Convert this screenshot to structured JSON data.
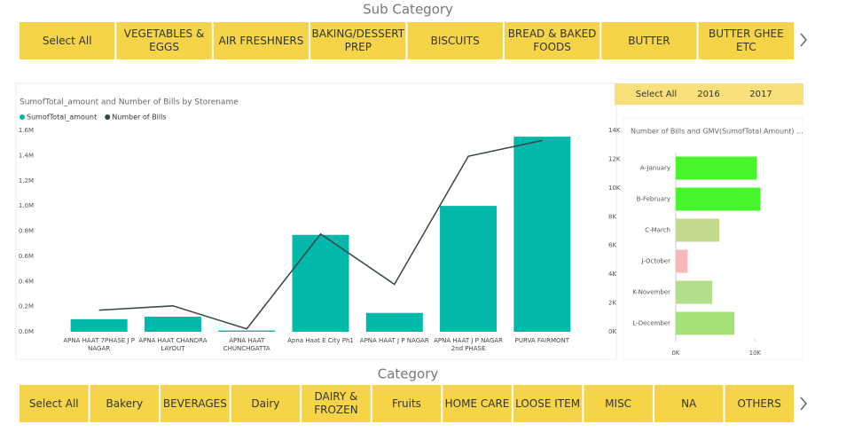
{
  "sub_category_slicer": {
    "title": "Sub Category",
    "items": [
      "Select All",
      "VEGETABLES & EGGS",
      "AIR FRESHNERS",
      "BAKING/DESSERT PREP",
      "BISCUITS",
      "BREAD & BAKED FOODS",
      "BUTTER",
      "BUTTER GHEE ETC"
    ]
  },
  "category_slicer": {
    "title": "Category",
    "items": [
      "Select All",
      "Bakery",
      "BEVERAGES",
      "Dairy",
      "DAIRY & FROZEN",
      "Fruits",
      "HOME CARE",
      "LOOSE ITEM",
      "MISC",
      "NA",
      "OTHERS"
    ]
  },
  "year_slicer": {
    "items": [
      "Select All",
      "2016",
      "2017"
    ]
  },
  "chart_data": [
    {
      "type": "combo",
      "title": "SumofTotal_amount and Number of Bills by Storename",
      "categories": [
        "APNA HAAT 7PHASE J P NAGAR",
        "APNA HAAT CHANDRA LAYOUT",
        "APNA HAAT CHUNCHGATTA",
        "Apna Haat E City Ph1",
        "APNA HAAT J P NAGAR",
        "APNA HAAT J P NAGAR 2nd PHASE",
        "PURVA FAIRMONT"
      ],
      "series": [
        {
          "name": "SumofTotal_amount",
          "color": "#01b8aa",
          "kind": "bar",
          "values": [
            100000,
            120000,
            10000,
            770000,
            150000,
            1000000,
            1550000
          ]
        },
        {
          "name": "Number of Bills",
          "color": "#374649",
          "kind": "line",
          "axis": "y2",
          "values": [
            1500,
            1800,
            200,
            6800,
            3300,
            12200,
            13300
          ]
        }
      ],
      "ylim": [
        0,
        1600000
      ],
      "yticks": [
        {
          "value": 0,
          "label": "0.0M"
        },
        {
          "value": 200000,
          "label": "0.2M"
        },
        {
          "value": 400000,
          "label": "0.4M"
        },
        {
          "value": 600000,
          "label": "0.6M"
        },
        {
          "value": 800000,
          "label": "0.8M"
        },
        {
          "value": 1000000,
          "label": "1.0M"
        },
        {
          "value": 1200000,
          "label": "1.2M"
        },
        {
          "value": 1400000,
          "label": "1.4M"
        },
        {
          "value": 1600000,
          "label": "1.6M"
        }
      ],
      "y2lim": [
        0,
        14000
      ],
      "y2ticks": [
        {
          "value": 0,
          "label": "0K"
        },
        {
          "value": 2000,
          "label": "2K"
        },
        {
          "value": 4000,
          "label": "4K"
        },
        {
          "value": 6000,
          "label": "6K"
        },
        {
          "value": 8000,
          "label": "8K"
        },
        {
          "value": 10000,
          "label": "10K"
        },
        {
          "value": 12000,
          "label": "12K"
        },
        {
          "value": 14000,
          "label": "14K"
        }
      ]
    },
    {
      "type": "hbar",
      "title": "Number of Bills and GMV(SumofTotal Amount) ...",
      "categories": [
        "A-January",
        "B-February",
        "C-March",
        "J-October",
        "K-November",
        "L-December"
      ],
      "values": [
        10200,
        10700,
        5500,
        1500,
        4600,
        7400
      ],
      "colors": [
        "#46f52a",
        "#46f52a",
        "#c2d98e",
        "#f6b8b8",
        "#b2de8c",
        "#a6e27a"
      ],
      "xlim": [
        0,
        16000
      ],
      "xticks": [
        {
          "value": 0,
          "label": "0K"
        },
        {
          "value": 10000,
          "label": "10K"
        }
      ]
    }
  ]
}
